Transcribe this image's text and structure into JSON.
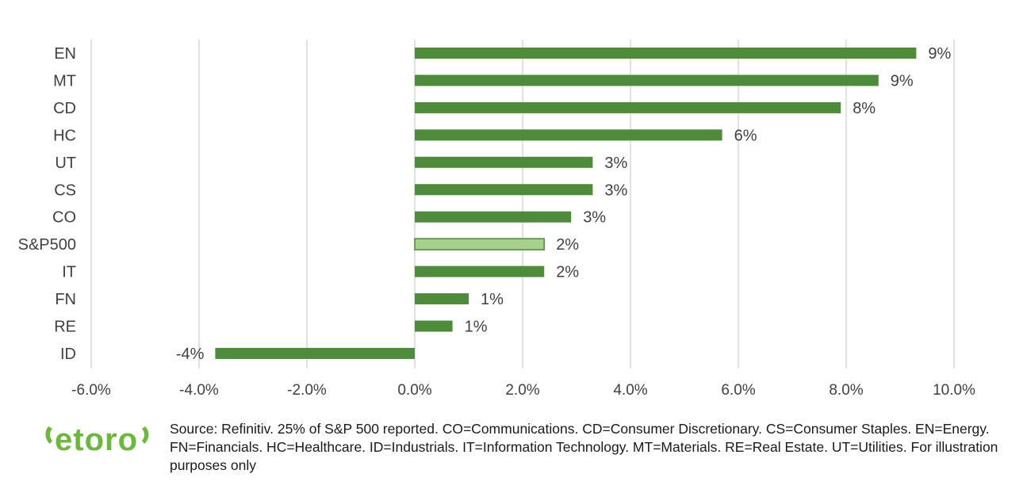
{
  "chart_data": {
    "type": "bar",
    "orientation": "horizontal",
    "categories": [
      "EN",
      "MT",
      "CD",
      "HC",
      "UT",
      "CS",
      "CO",
      "S&P500",
      "IT",
      "FN",
      "RE",
      "ID"
    ],
    "values": [
      9.3,
      8.6,
      7.9,
      5.7,
      3.3,
      3.3,
      2.9,
      2.4,
      2.4,
      1.0,
      0.7,
      -3.7
    ],
    "data_labels": [
      "9%",
      "9%",
      "8%",
      "6%",
      "3%",
      "3%",
      "3%",
      "2%",
      "2%",
      "1%",
      "1%",
      "-4%"
    ],
    "highlight_category": "S&P500",
    "xlim": [
      -6,
      10
    ],
    "x_ticks": [
      -6,
      -4,
      -2,
      0,
      2,
      4,
      6,
      8,
      10
    ],
    "x_tick_labels": [
      "-6.0%",
      "-4.0%",
      "-2.0%",
      "0.0%",
      "2.0%",
      "4.0%",
      "6.0%",
      "8.0%",
      "10.0%"
    ],
    "grid": "vertical",
    "title": "",
    "xlabel": "",
    "ylabel": "",
    "colors": {
      "bar": "#4e8b3a",
      "highlight_bar": "#a7d08c",
      "highlight_edge": "#4e8b3a",
      "grid": "#d9d9d9",
      "text": "#404040"
    }
  },
  "footer": {
    "logo_text": "etoro",
    "logo_color": "#6cb83d",
    "source_note": "Source: Refinitiv. 25% of S&P 500 reported. CO=Communications. CD=Consumer Discretionary. CS=Consumer Staples.  EN=Energy. FN=Financials. HC=Healthcare. ID=Industrials. IT=Information Technology. MT=Materials. RE=Real Estate. UT=Utilities. For illustration purposes only"
  }
}
